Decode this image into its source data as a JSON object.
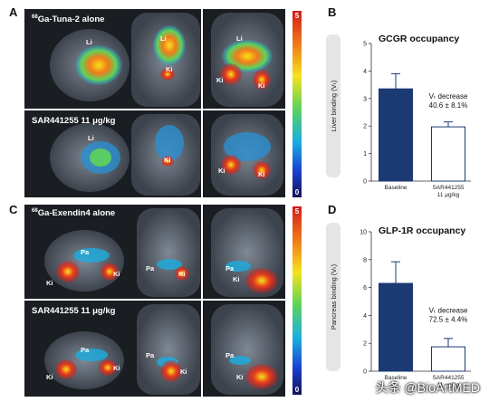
{
  "panels": {
    "a": {
      "letter": "A",
      "colorbar_max": "5",
      "colorbar_min": "0",
      "rows": [
        {
          "label_sup": "68",
          "label": "Ga-Tuna-2 alone",
          "organs": [
            "Li",
            "Li",
            "Ki",
            "Li",
            "Ki",
            "Ki"
          ]
        },
        {
          "label": "SAR441255 11 μg/kg",
          "organs": [
            "Li",
            "Ki",
            "Ki",
            "Ki"
          ]
        }
      ]
    },
    "c": {
      "letter": "C",
      "colorbar_max": "5",
      "colorbar_min": "0",
      "rows": [
        {
          "label_sup": "68",
          "label": "Ga-Exendin4 alone",
          "organs": [
            "Pa",
            "Ki",
            "Ki",
            "Pa",
            "Ki",
            "Pa",
            "Ki"
          ]
        },
        {
          "label": "SAR441255 11 μg/kg",
          "organs": [
            "Pa",
            "Ki",
            "Ki",
            "Pa",
            "Ki",
            "Pa",
            "Ki"
          ]
        }
      ]
    },
    "b": {
      "letter": "B"
    },
    "d": {
      "letter": "D"
    }
  },
  "chart_data": [
    {
      "type": "bar",
      "title": "GCGR occupancy",
      "ylabel": "Liver binding (Vₜ)",
      "categories": [
        "Baseline",
        "SAR441255\n11 μg/kg"
      ],
      "values": [
        3.35,
        1.97
      ],
      "errors": [
        0.55,
        0.18
      ],
      "bar_colors": [
        "#1b3a73",
        "#ffffff"
      ],
      "ylim": [
        0,
        5
      ],
      "yticks": [
        "0",
        "1",
        "2",
        "3",
        "4",
        "5"
      ],
      "annotation": [
        "Vₜ decrease",
        "40.6 ± 8.1%"
      ]
    },
    {
      "type": "bar",
      "title": "GLP-1R occupancy",
      "ylabel": "Pancreas binding (Vₜ)",
      "categories": [
        "Baseline",
        "SAR441255\n11 μg/kg"
      ],
      "values": [
        6.3,
        1.75
      ],
      "errors": [
        1.55,
        0.6
      ],
      "bar_colors": [
        "#1b3a73",
        "#ffffff"
      ],
      "ylim": [
        0,
        10
      ],
      "yticks": [
        "0",
        "2",
        "4",
        "6",
        "8",
        "10"
      ],
      "annotation": [
        "Vₜ decrease",
        "72.5 ± 4.4%"
      ]
    }
  ],
  "watermark": "头条 @BioArtMED"
}
